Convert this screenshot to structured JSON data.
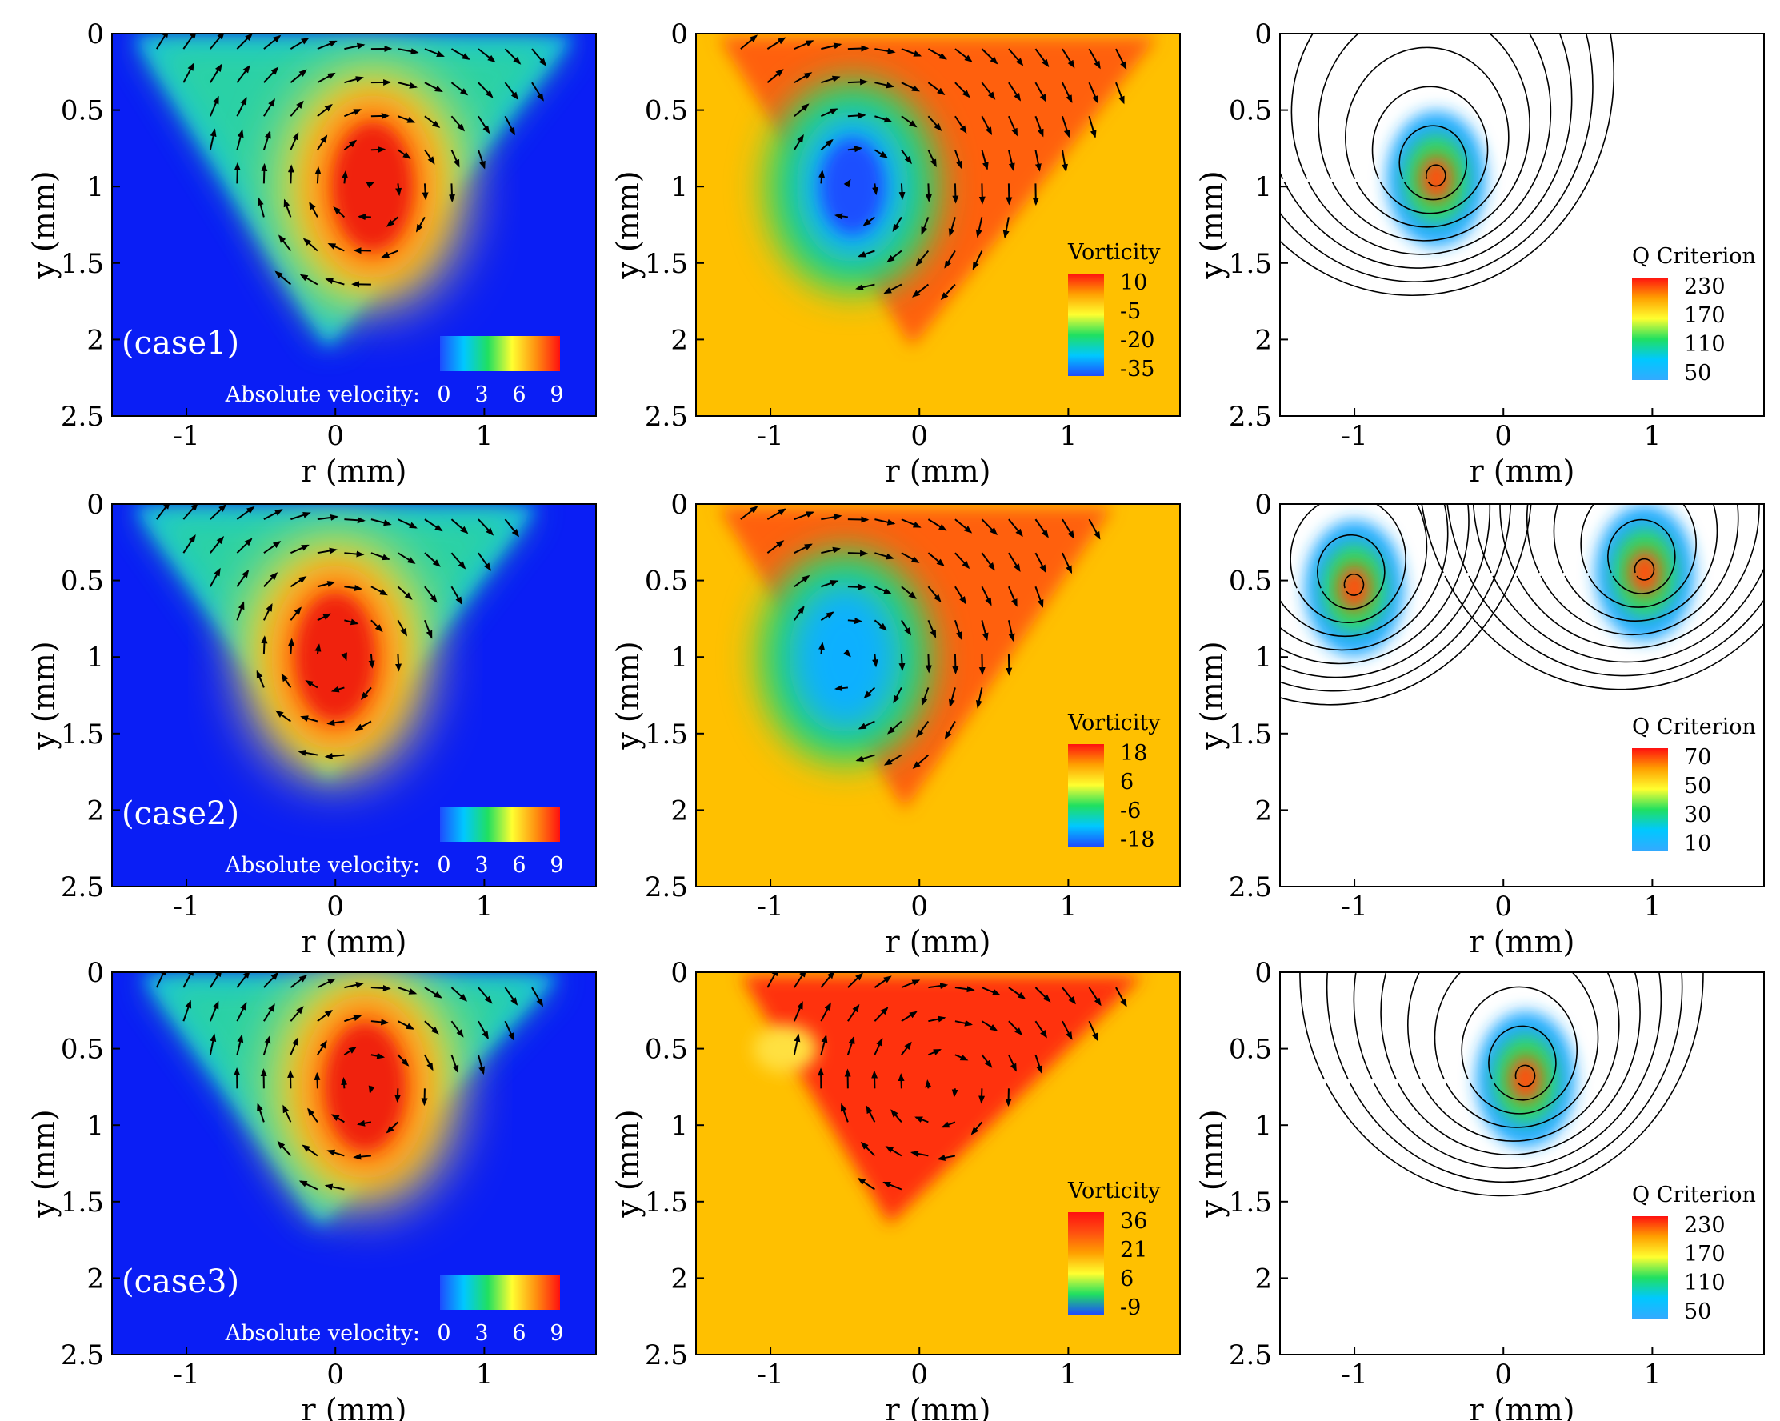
{
  "figure": {
    "rows": [
      "(case1)",
      "(case2)",
      "(case3)"
    ]
  },
  "chart_data": [
    {
      "type": "heatmap",
      "panel": "case1-velocity",
      "case_label": "(case1)",
      "xlabel": "r (mm)",
      "ylabel": "y (mm)",
      "xlim": [
        -1.5,
        1.75
      ],
      "ylim": [
        2.5,
        0
      ],
      "xticks": [
        "-1",
        "0",
        "1"
      ],
      "yticks": [
        "0",
        "0.5",
        "1",
        "1.5",
        "2",
        "2.5"
      ],
      "background": "#0a1ef5",
      "legend": {
        "title": "Absolute velocity:",
        "ticks": [
          "0",
          "3",
          "6",
          "9"
        ],
        "colors": [
          "#1e4cff",
          "#00c8ff",
          "#20e060",
          "#ffff30",
          "#ff9010",
          "#ff1010"
        ]
      },
      "vortex": [
        0.25,
        1.0
      ],
      "triangle": {
        "top_left": -1.35,
        "top_right": 1.6,
        "apex": [
          -0.05,
          2.05
        ]
      }
    },
    {
      "type": "heatmap",
      "panel": "case1-vorticity",
      "xlabel": "r (mm)",
      "ylabel": "y (mm)",
      "xlim": [
        -1.5,
        1.75
      ],
      "ylim": [
        2.5,
        0
      ],
      "xticks": [
        "-1",
        "0",
        "1"
      ],
      "yticks": [
        "0",
        "0.5",
        "1",
        "1.5",
        "2",
        "2.5"
      ],
      "background": "#ffc000",
      "legend": {
        "title": "Vorticity",
        "ticks": [
          "10",
          "-5",
          "-20",
          "-35"
        ],
        "colors": [
          "#ff1010",
          "#ffa000",
          "#ffff30",
          "#20e060",
          "#00c8ff",
          "#1e4cff"
        ]
      },
      "vortex": [
        -0.45,
        1.0
      ],
      "triangle": {
        "top_left": -1.35,
        "top_right": 1.6,
        "apex": [
          -0.05,
          2.05
        ]
      }
    },
    {
      "type": "heatmap",
      "panel": "case1-q",
      "xlabel": "r (mm)",
      "ylabel": "y (mm)",
      "xlim": [
        -1.5,
        1.75
      ],
      "ylim": [
        2.5,
        0
      ],
      "xticks": [
        "-1",
        "0",
        "1"
      ],
      "yticks": [
        "0",
        "0.5",
        "1",
        "1.5",
        "2",
        "2.5"
      ],
      "background": "#ffffff",
      "legend": {
        "title": "Q Criterion",
        "ticks": [
          "230",
          "170",
          "110",
          "50"
        ],
        "colors": [
          "#ff1010",
          "#ffa000",
          "#ffff30",
          "#20e060",
          "#00c8ff",
          "#33aaff"
        ]
      },
      "vortex": [
        -0.45,
        0.95
      ]
    },
    {
      "type": "heatmap",
      "panel": "case2-velocity",
      "case_label": "(case2)",
      "xlabel": "r (mm)",
      "ylabel": "y (mm)",
      "xlim": [
        -1.5,
        1.75
      ],
      "ylim": [
        2.5,
        0
      ],
      "xticks": [
        "-1",
        "0",
        "1"
      ],
      "yticks": [
        "0",
        "0.5",
        "1",
        "1.5",
        "2",
        "2.5"
      ],
      "background": "#0a1ef5",
      "legend": {
        "title": "Absolute velocity:",
        "ticks": [
          "0",
          "3",
          "6",
          "9"
        ],
        "colors": [
          "#1e4cff",
          "#00c8ff",
          "#20e060",
          "#ffff30",
          "#ff9010",
          "#ff1010"
        ]
      },
      "vortex": [
        0.0,
        1.0
      ],
      "triangle": {
        "top_left": -1.35,
        "top_right": 1.35,
        "apex": [
          -0.05,
          1.8
        ]
      }
    },
    {
      "type": "heatmap",
      "panel": "case2-vorticity",
      "xlabel": "r (mm)",
      "ylabel": "y (mm)",
      "xlim": [
        -1.5,
        1.75
      ],
      "ylim": [
        2.5,
        0
      ],
      "xticks": [
        "-1",
        "0",
        "1"
      ],
      "yticks": [
        "0",
        "0.5",
        "1",
        "1.5",
        "2",
        "2.5"
      ],
      "background": "#ffc000",
      "legend": {
        "title": "Vorticity",
        "ticks": [
          "18",
          "6",
          "-6",
          "-18"
        ],
        "colors": [
          "#ff1010",
          "#ffa000",
          "#ffff30",
          "#20e060",
          "#00c8ff",
          "#1e4cff"
        ]
      },
      "vortex": [
        -0.5,
        1.0
      ],
      "triangle": {
        "top_left": -1.35,
        "top_right": 1.3,
        "apex": [
          -0.1,
          2.0
        ]
      }
    },
    {
      "type": "heatmap",
      "panel": "case2-q",
      "xlabel": "r (mm)",
      "ylabel": "y (mm)",
      "xlim": [
        -1.5,
        1.75
      ],
      "ylim": [
        2.5,
        0
      ],
      "xticks": [
        "-1",
        "0",
        "1"
      ],
      "yticks": [
        "0",
        "0.5",
        "1",
        "1.5",
        "2",
        "2.5"
      ],
      "background": "#ffffff",
      "legend": {
        "title": "Q Criterion",
        "ticks": [
          "70",
          "50",
          "30",
          "10"
        ],
        "colors": [
          "#ff1010",
          "#ffa000",
          "#ffff30",
          "#20e060",
          "#00c8ff",
          "#33aaff"
        ]
      },
      "vortex": [
        -1.0,
        0.55
      ],
      "vortex2": [
        0.95,
        0.45
      ]
    },
    {
      "type": "heatmap",
      "panel": "case3-velocity",
      "case_label": "(case3)",
      "xlabel": "r (mm)",
      "ylabel": "y (mm)",
      "xlim": [
        -1.5,
        1.75
      ],
      "ylim": [
        2.5,
        0
      ],
      "xticks": [
        "-1",
        "0",
        "1"
      ],
      "yticks": [
        "0",
        "0.5",
        "1",
        "1.5",
        "2",
        "2.5"
      ],
      "background": "#0a1ef5",
      "legend": {
        "title": "Absolute velocity:",
        "ticks": [
          "0",
          "3",
          "6",
          "9"
        ],
        "colors": [
          "#1e4cff",
          "#00c8ff",
          "#20e060",
          "#ffff30",
          "#ff9010",
          "#ff1010"
        ]
      },
      "vortex": [
        0.2,
        0.75
      ],
      "triangle": {
        "top_left": -1.3,
        "top_right": 1.5,
        "apex": [
          -0.1,
          1.65
        ]
      }
    },
    {
      "type": "heatmap",
      "panel": "case3-vorticity",
      "xlabel": "r (mm)",
      "ylabel": "y (mm)",
      "xlim": [
        -1.5,
        1.75
      ],
      "ylim": [
        2.5,
        0
      ],
      "xticks": [
        "-1",
        "0",
        "1"
      ],
      "yticks": [
        "0",
        "0.5",
        "1",
        "1.5",
        "2",
        "2.5"
      ],
      "background": "#ffc000",
      "legend": {
        "title": "Vorticity",
        "ticks": [
          "36",
          "21",
          "6",
          "-9"
        ],
        "colors": [
          "#ff1010",
          "#ff5010",
          "#ffa000",
          "#ffff30",
          "#20e060",
          "#1e4cff"
        ]
      },
      "vortex": [
        0.15,
        0.75
      ],
      "triangle": {
        "top_left": -1.2,
        "top_right": 1.5,
        "apex": [
          -0.2,
          1.65
        ]
      }
    },
    {
      "type": "heatmap",
      "panel": "case3-q",
      "xlabel": "r (mm)",
      "ylabel": "y (mm)",
      "xlim": [
        -1.5,
        1.75
      ],
      "ylim": [
        2.5,
        0
      ],
      "xticks": [
        "-1",
        "0",
        "1"
      ],
      "yticks": [
        "0",
        "0.5",
        "1",
        "1.5",
        "2",
        "2.5"
      ],
      "background": "#ffffff",
      "legend": {
        "title": "Q Criterion",
        "ticks": [
          "230",
          "170",
          "110",
          "50"
        ],
        "colors": [
          "#ff1010",
          "#ffa000",
          "#ffff30",
          "#20e060",
          "#00c8ff",
          "#33aaff"
        ]
      },
      "vortex": [
        0.15,
        0.7
      ]
    }
  ]
}
